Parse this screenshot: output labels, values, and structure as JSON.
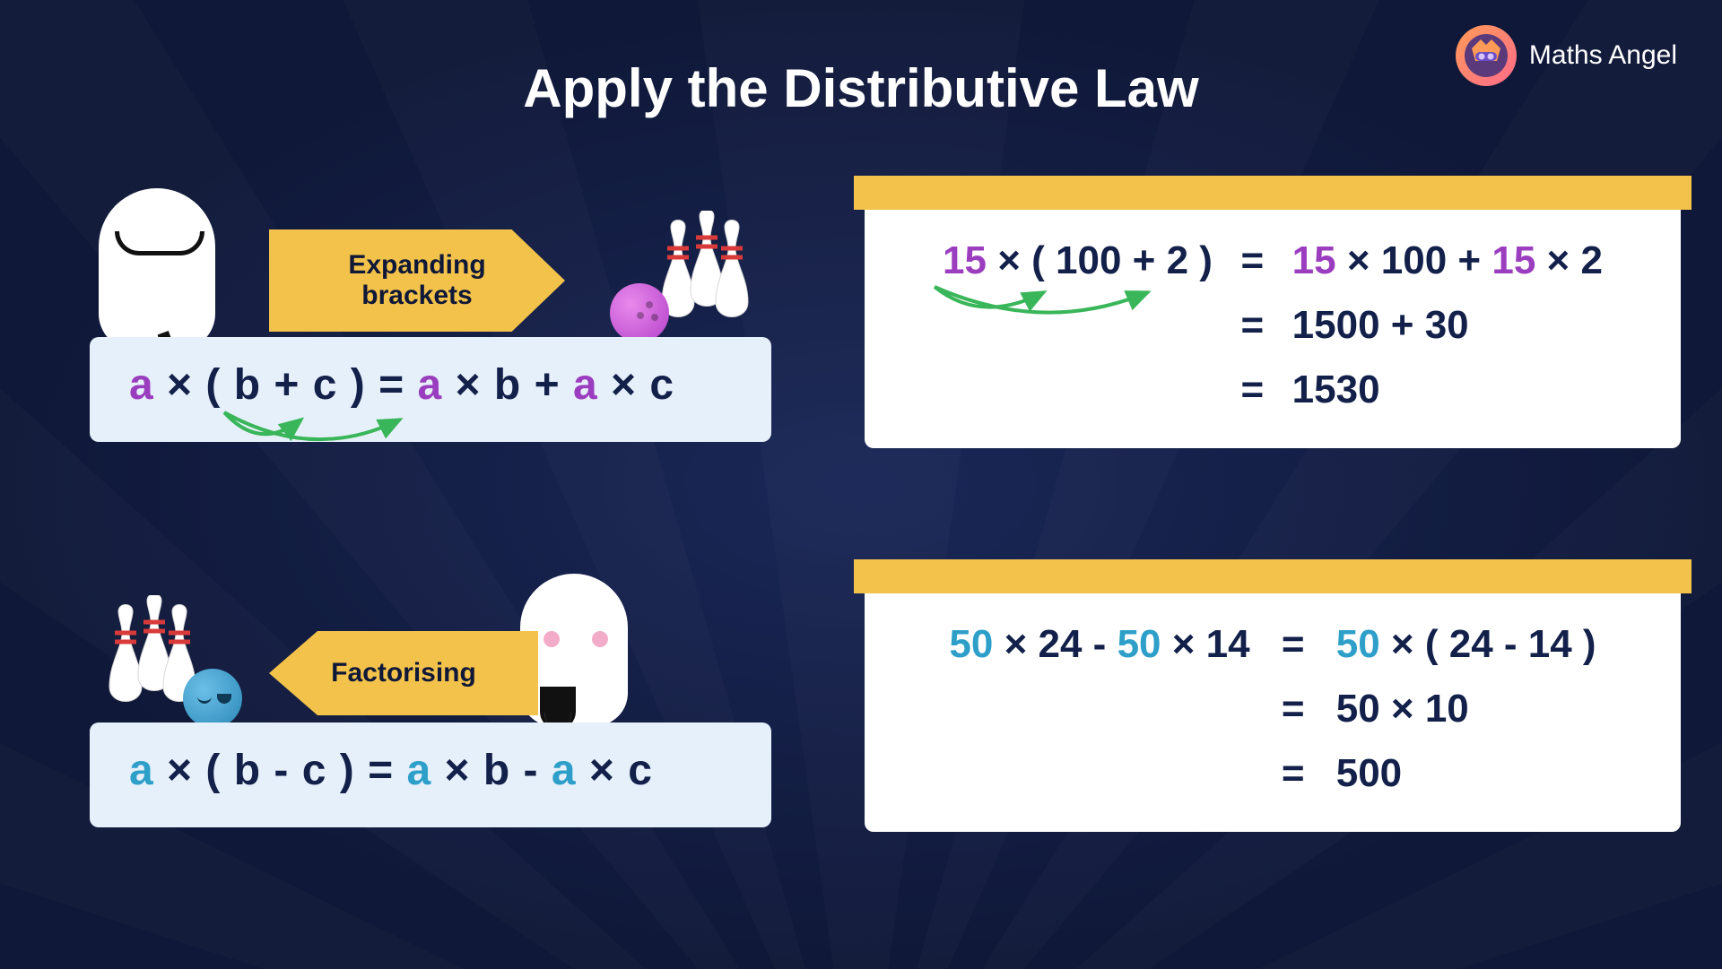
{
  "brand": "Maths Angel",
  "title": "Apply the Distributive Law",
  "colors": {
    "bg_inner": "#1a2757",
    "bg_outer": "#0f1838",
    "panel_light": "#e6f0fa",
    "panel_white": "#ffffff",
    "accent_yellow": "#f3c24a",
    "text_dark": "#12204a",
    "purple": "#9b3dbf",
    "cyan": "#2e9fc9",
    "arrow_green": "#3ab65a"
  },
  "tags": {
    "expanding": "Expanding brackets",
    "factorising": "Factorising"
  },
  "formula_top": {
    "parts": [
      {
        "t": "a",
        "c": "purple"
      },
      {
        "t": " × ",
        "c": "dark"
      },
      {
        "t": "( ",
        "c": "dark"
      },
      {
        "t": "b",
        "c": "dark"
      },
      {
        "t": " + ",
        "c": "dark"
      },
      {
        "t": "c",
        "c": "dark"
      },
      {
        "t": " )",
        "c": "dark"
      },
      {
        "t": "  =  ",
        "c": "dark"
      },
      {
        "t": "a",
        "c": "purple"
      },
      {
        "t": " × ",
        "c": "dark"
      },
      {
        "t": "b",
        "c": "dark"
      },
      {
        "t": " + ",
        "c": "dark"
      },
      {
        "t": "a",
        "c": "purple"
      },
      {
        "t": " × ",
        "c": "dark"
      },
      {
        "t": "c",
        "c": "dark"
      }
    ]
  },
  "formula_bot": {
    "parts": [
      {
        "t": "a",
        "c": "cyan"
      },
      {
        "t": " × ",
        "c": "dark"
      },
      {
        "t": "( ",
        "c": "dark"
      },
      {
        "t": "b",
        "c": "dark"
      },
      {
        "t": " - ",
        "c": "dark"
      },
      {
        "t": "c",
        "c": "dark"
      },
      {
        "t": " )",
        "c": "dark"
      },
      {
        "t": "  =  ",
        "c": "dark"
      },
      {
        "t": "a",
        "c": "cyan"
      },
      {
        "t": " × ",
        "c": "dark"
      },
      {
        "t": "b",
        "c": "dark"
      },
      {
        "t": " - ",
        "c": "dark"
      },
      {
        "t": "a",
        "c": "cyan"
      },
      {
        "t": " × ",
        "c": "dark"
      },
      {
        "t": "c",
        "c": "dark"
      }
    ]
  },
  "example_top": {
    "rows": [
      {
        "left": [
          {
            "t": "15",
            "c": "purple"
          },
          {
            "t": " × ",
            "c": "dark"
          },
          {
            "t": "( 100 + 2 )",
            "c": "dark"
          }
        ],
        "right": [
          {
            "t": "15",
            "c": "purple"
          },
          {
            "t": " × ",
            "c": "dark"
          },
          {
            "t": "100",
            "c": "dark"
          },
          {
            "t": " + ",
            "c": "dark"
          },
          {
            "t": "15",
            "c": "purple"
          },
          {
            "t": " × ",
            "c": "dark"
          },
          {
            "t": "2",
            "c": "dark"
          }
        ]
      },
      {
        "left": [],
        "right": [
          {
            "t": "1500 + 30",
            "c": "dark"
          }
        ]
      },
      {
        "left": [],
        "right": [
          {
            "t": "1530",
            "c": "dark"
          }
        ]
      }
    ]
  },
  "example_bot": {
    "rows": [
      {
        "left": [
          {
            "t": "50",
            "c": "cyan"
          },
          {
            "t": " × ",
            "c": "dark"
          },
          {
            "t": "24",
            "c": "dark"
          },
          {
            "t": " - ",
            "c": "dark"
          },
          {
            "t": "50",
            "c": "cyan"
          },
          {
            "t": " × ",
            "c": "dark"
          },
          {
            "t": "14",
            "c": "dark"
          }
        ],
        "right": [
          {
            "t": "50",
            "c": "cyan"
          },
          {
            "t": " × ",
            "c": "dark"
          },
          {
            "t": "( 24 - 14 )",
            "c": "dark"
          }
        ]
      },
      {
        "left": [],
        "right": [
          {
            "t": "50 × 10",
            "c": "dark"
          }
        ]
      },
      {
        "left": [],
        "right": [
          {
            "t": "500",
            "c": "dark"
          }
        ]
      }
    ]
  }
}
